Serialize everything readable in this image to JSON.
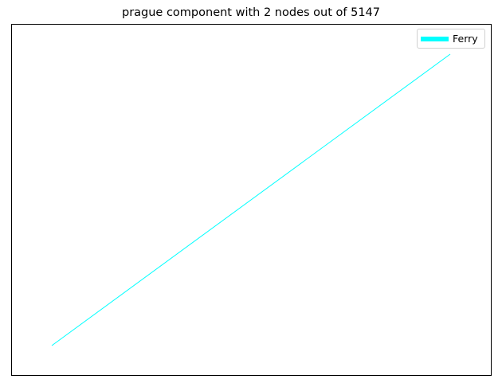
{
  "title": "prague component with 2 nodes out of 5147",
  "legend": {
    "entries": [
      {
        "label": "Ferry",
        "color": "#00ffff"
      }
    ]
  },
  "edges": [
    {
      "type": "Ferry",
      "color": "#00ffff"
    }
  ],
  "axes": {
    "ticks": "none",
    "frame": true
  }
}
